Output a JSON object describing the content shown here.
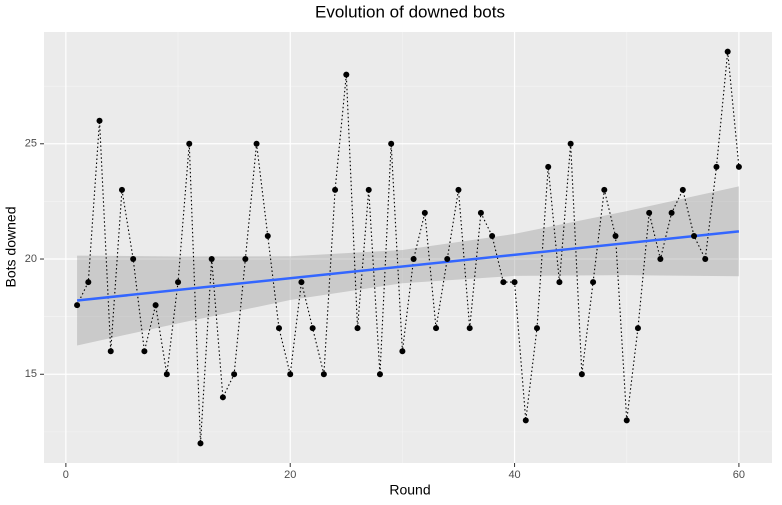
{
  "chart_data": {
    "type": "line",
    "title": "Evolution of downed bots",
    "x_label": "Round",
    "y_label": "Bots downed",
    "x": [
      1,
      2,
      3,
      4,
      5,
      6,
      7,
      8,
      9,
      10,
      11,
      12,
      13,
      14,
      15,
      16,
      17,
      18,
      19,
      20,
      21,
      22,
      23,
      24,
      25,
      26,
      27,
      28,
      29,
      30,
      31,
      32,
      33,
      34,
      35,
      36,
      37,
      38,
      39,
      40,
      41,
      42,
      43,
      44,
      45,
      46,
      47,
      48,
      49,
      50,
      51,
      52,
      53,
      54,
      55,
      56,
      57,
      58,
      59,
      60
    ],
    "values": [
      18,
      19,
      26,
      16,
      23,
      20,
      16,
      18,
      15,
      19,
      25,
      12,
      20,
      14,
      15,
      20,
      25,
      21,
      17,
      15,
      19,
      17,
      15,
      23,
      28,
      17,
      23,
      15,
      25,
      16,
      20,
      22,
      17,
      20,
      23,
      17,
      22,
      21,
      19,
      19,
      13,
      17,
      24,
      19,
      25,
      15,
      19,
      23,
      21,
      13,
      17,
      22,
      20,
      22,
      23,
      21,
      20,
      24,
      29,
      24
    ],
    "color": "#000000",
    "trend": {
      "color": "#3366ff",
      "x": [
        1,
        60
      ],
      "values": [
        18.2,
        21.2
      ]
    },
    "band": {
      "color": "#999999",
      "x": [
        1,
        10,
        20,
        30,
        40,
        50,
        60
      ],
      "lower": [
        16.25,
        17.21,
        18.22,
        18.95,
        19.27,
        19.3,
        19.25
      ],
      "upper": [
        20.15,
        20.11,
        20.12,
        20.39,
        21.09,
        22.08,
        23.15
      ]
    },
    "xlim": [
      -1.95,
      62.95
    ],
    "ylim": [
      11.15,
      29.85
    ],
    "xticks": [
      0,
      20,
      40,
      60
    ],
    "yticks": [
      15,
      20,
      25
    ],
    "x_minor_grid": [
      10,
      30,
      50
    ],
    "y_minor_grid": [
      12.5,
      17.5,
      22.5,
      27.5
    ],
    "grid": true
  }
}
